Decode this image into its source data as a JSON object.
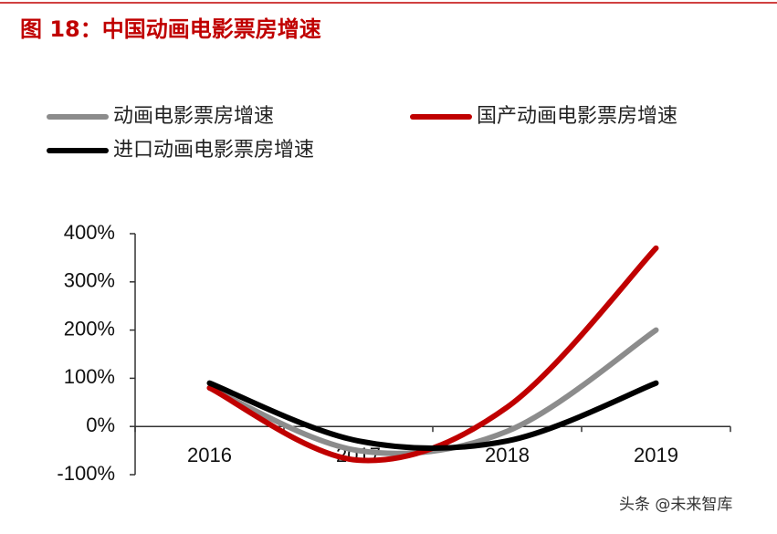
{
  "chart_data": {
    "type": "line",
    "title": "图 18：中国动画电影票房增速",
    "categories": [
      "2016",
      "2017",
      "2018",
      "2019"
    ],
    "series": [
      {
        "name": "动画电影票房增速",
        "color": "#8c8c8c",
        "values": [
          80,
          -50,
          -10,
          200
        ]
      },
      {
        "name": "国产动画电影票房增速",
        "color": "#c00000",
        "values": [
          80,
          -70,
          40,
          370
        ]
      },
      {
        "name": "进口动画电影票房增速",
        "color": "#000000",
        "values": [
          90,
          -30,
          -30,
          90
        ]
      }
    ],
    "ylim": [
      -100,
      400
    ],
    "yticks": [
      {
        "value": -100,
        "label": "-100%"
      },
      {
        "value": 0,
        "label": "0%"
      },
      {
        "value": 100,
        "label": "100%"
      },
      {
        "value": 200,
        "label": "200%"
      },
      {
        "value": 300,
        "label": "300%"
      },
      {
        "value": 400,
        "label": "400%"
      }
    ],
    "watermark": "头条 @未来智库"
  }
}
